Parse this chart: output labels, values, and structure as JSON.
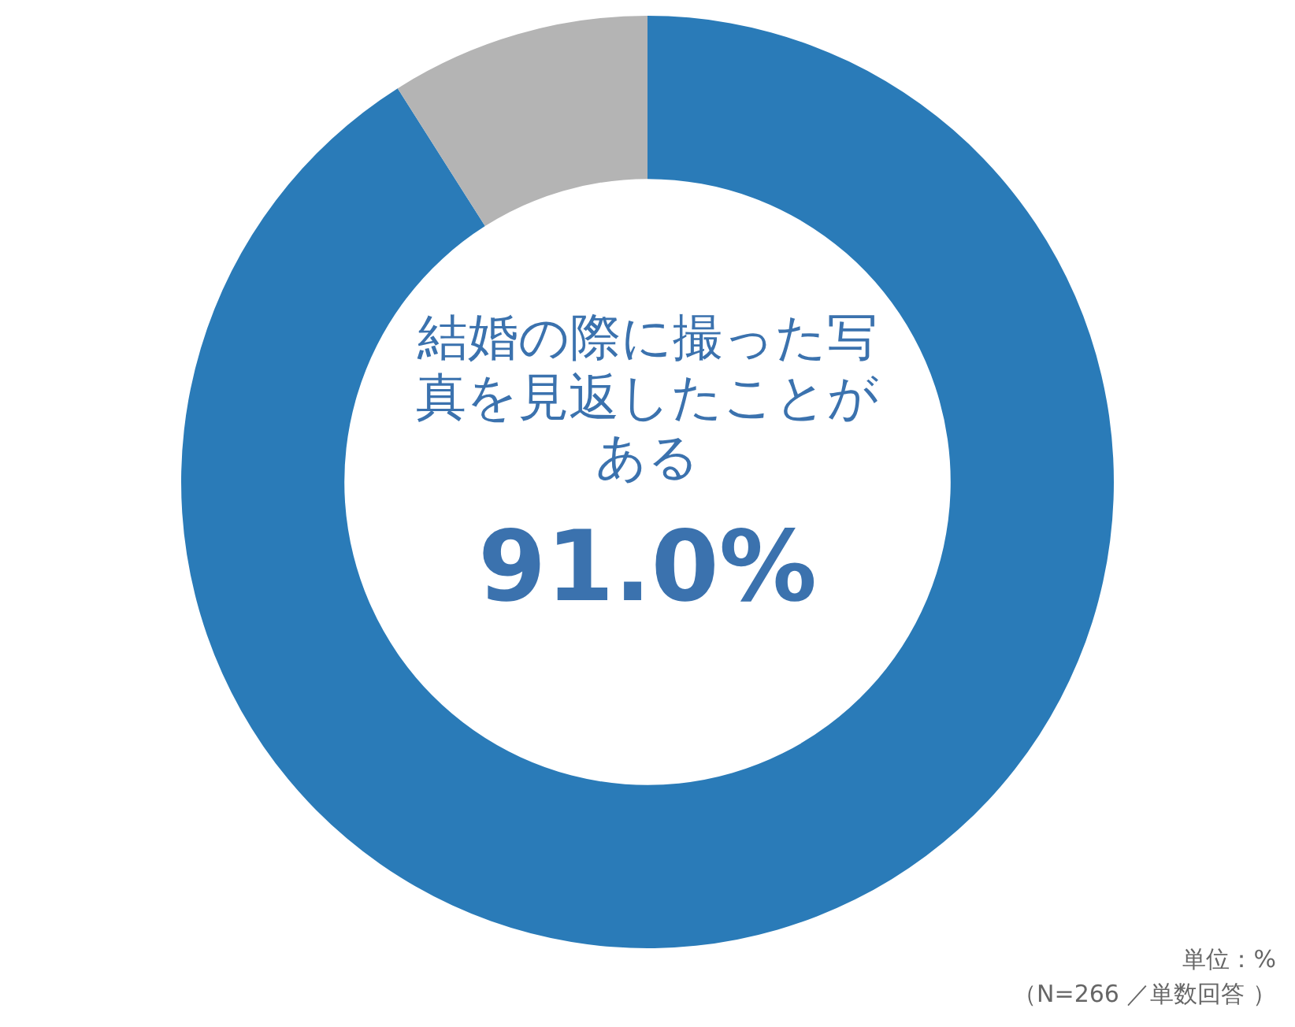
{
  "chart_data": {
    "type": "donut",
    "categories": [
      "結婚の際に撮った写真を見返したことがある",
      null
    ],
    "values": [
      91.0,
      9.0
    ],
    "colors": [
      "#2a7bb8",
      "#b4b4b4"
    ],
    "value_labels": [
      "91.0%",
      null
    ],
    "legend": false,
    "annotations": [
      "単位：%",
      "（N=266 ／単数回答 ）"
    ]
  }
}
